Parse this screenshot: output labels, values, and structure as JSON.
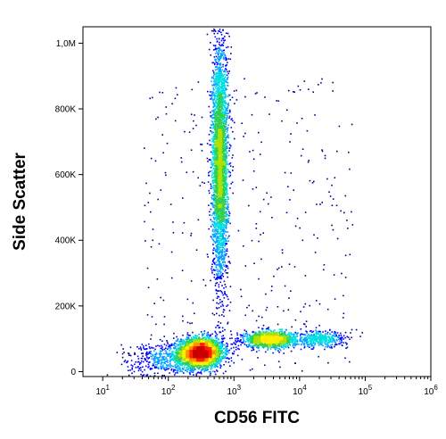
{
  "chart_data": {
    "type": "scatter",
    "subtype": "flow-cytometry-density-dot-plot",
    "xlabel": "CD56 FITC",
    "ylabel": "Side Scatter",
    "x_scale": "log",
    "y_scale": "linear",
    "xlim": [
      5,
      1000000
    ],
    "ylim": [
      -15000,
      1050000
    ],
    "x_ticks": [
      {
        "value": 10,
        "base": "10",
        "exp": "1"
      },
      {
        "value": 100,
        "base": "10",
        "exp": "2"
      },
      {
        "value": 1000,
        "base": "10",
        "exp": "3"
      },
      {
        "value": 10000,
        "base": "10",
        "exp": "4"
      },
      {
        "value": 100000,
        "base": "10",
        "exp": "5"
      },
      {
        "value": 1000000,
        "base": "10",
        "exp": "6"
      }
    ],
    "y_ticks": [
      {
        "value": 0,
        "label": "0"
      },
      {
        "value": 200000,
        "label": "200K"
      },
      {
        "value": 400000,
        "label": "400K"
      },
      {
        "value": 600000,
        "label": "600K"
      },
      {
        "value": 800000,
        "label": "800K"
      },
      {
        "value": 1000000,
        "label": "1,0M"
      }
    ],
    "grid": false,
    "legend": "none",
    "colormap": [
      "#00008b",
      "#0000ff",
      "#00a0ff",
      "#00e0e0",
      "#30d050",
      "#b0e000",
      "#ffee00",
      "#ff9000",
      "#ff2000",
      "#c80000"
    ],
    "populations": [
      {
        "x_center": 300,
        "y_center": 60000,
        "x_spread_log10": 0.17,
        "y_spread": 22000,
        "weight": 0.3,
        "peak": true
      },
      {
        "x_center": 3500,
        "y_center": 100000,
        "x_spread_log10": 0.2,
        "y_spread": 12000,
        "weight": 0.13,
        "peak": false
      },
      {
        "x_center": 600,
        "y_center": 640000,
        "x_spread_log10": 0.06,
        "y_spread": 180000,
        "weight": 0.35,
        "peak": false
      },
      {
        "x_center": 20000,
        "y_center": 100000,
        "x_spread_log10": 0.2,
        "y_spread": 12000,
        "weight": 0.04,
        "peak": false
      },
      {
        "x_center": 120,
        "y_center": 40000,
        "x_spread_log10": 0.35,
        "y_spread": 25000,
        "weight": 0.06,
        "peak": false
      }
    ]
  }
}
